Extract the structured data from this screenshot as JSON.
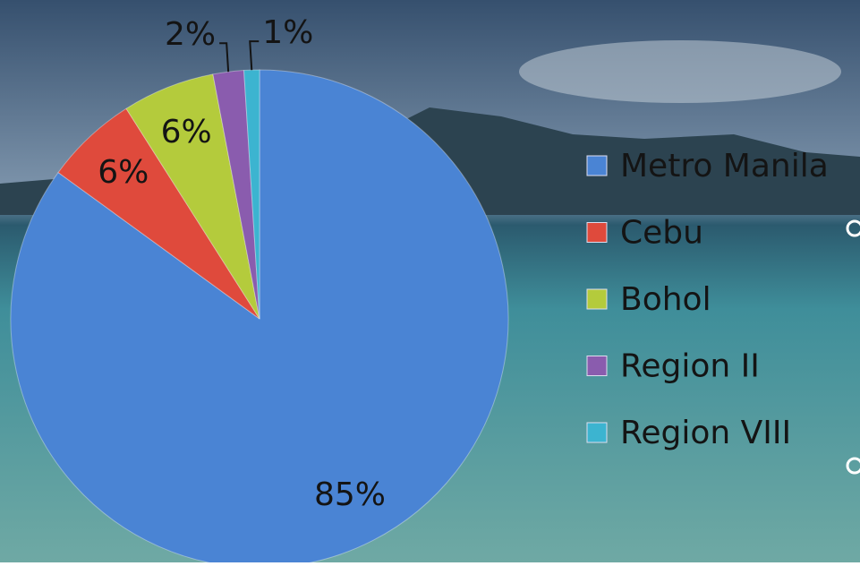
{
  "chart_data": {
    "type": "pie",
    "categories": [
      "Metro Manila",
      "Cebu",
      "Bohol",
      "Region II",
      "Region VIII"
    ],
    "values": [
      85,
      6,
      6,
      2,
      1
    ],
    "value_labels": [
      "85%",
      "6%",
      "6%",
      "2%",
      "1%"
    ],
    "colors": [
      "#4a84d4",
      "#df4a3c",
      "#b4cb3c",
      "#8a5cae",
      "#3cb4d0"
    ],
    "legend": "right"
  }
}
